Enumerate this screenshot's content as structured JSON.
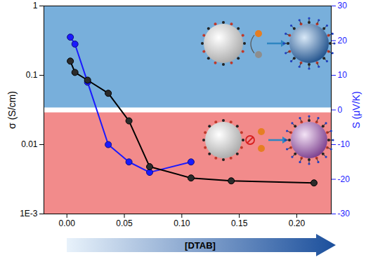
{
  "chart_data": {
    "type": "line",
    "xlabel": "[DTAB]",
    "ylabel": "σ (S/cm)",
    "y2label": "S (μV/K)",
    "log": "y",
    "xlim": [
      -0.02,
      0.23
    ],
    "xticks": [
      {
        "value": 0,
        "label": "0.00"
      },
      {
        "value": 0.05,
        "label": "0.05"
      },
      {
        "value": 0.1,
        "label": "0.10"
      },
      {
        "value": 0.15,
        "label": "0.15"
      },
      {
        "value": 0.2,
        "label": "0.20"
      }
    ],
    "ylim": [
      0.001,
      1
    ],
    "yticks": [
      {
        "value": 0.001,
        "label": "1E-3"
      },
      0.01,
      0.1,
      1
    ],
    "y2lim": [
      -30,
      30
    ],
    "y2ticks": [
      -30,
      -20,
      -10,
      0,
      10,
      20,
      30
    ],
    "series": [
      {
        "color": "#000000",
        "marker": "circle",
        "x": [
          0.003,
          0.007,
          0.018,
          0.036,
          0.054,
          0.072,
          0.108,
          0.143,
          0.215
        ],
        "values": [
          0.16,
          0.11,
          0.085,
          0.055,
          0.022,
          0.0048,
          0.0033,
          0.003,
          0.0028
        ]
      },
      {
        "color": "#1a1aff",
        "marker": "circle",
        "axis": "y2",
        "x": [
          0.003,
          0.007,
          0.018,
          0.036,
          0.054,
          0.072,
          0.108
        ],
        "values": [
          21,
          19,
          8,
          -10,
          -15,
          -18,
          -15
        ]
      }
    ]
  }
}
